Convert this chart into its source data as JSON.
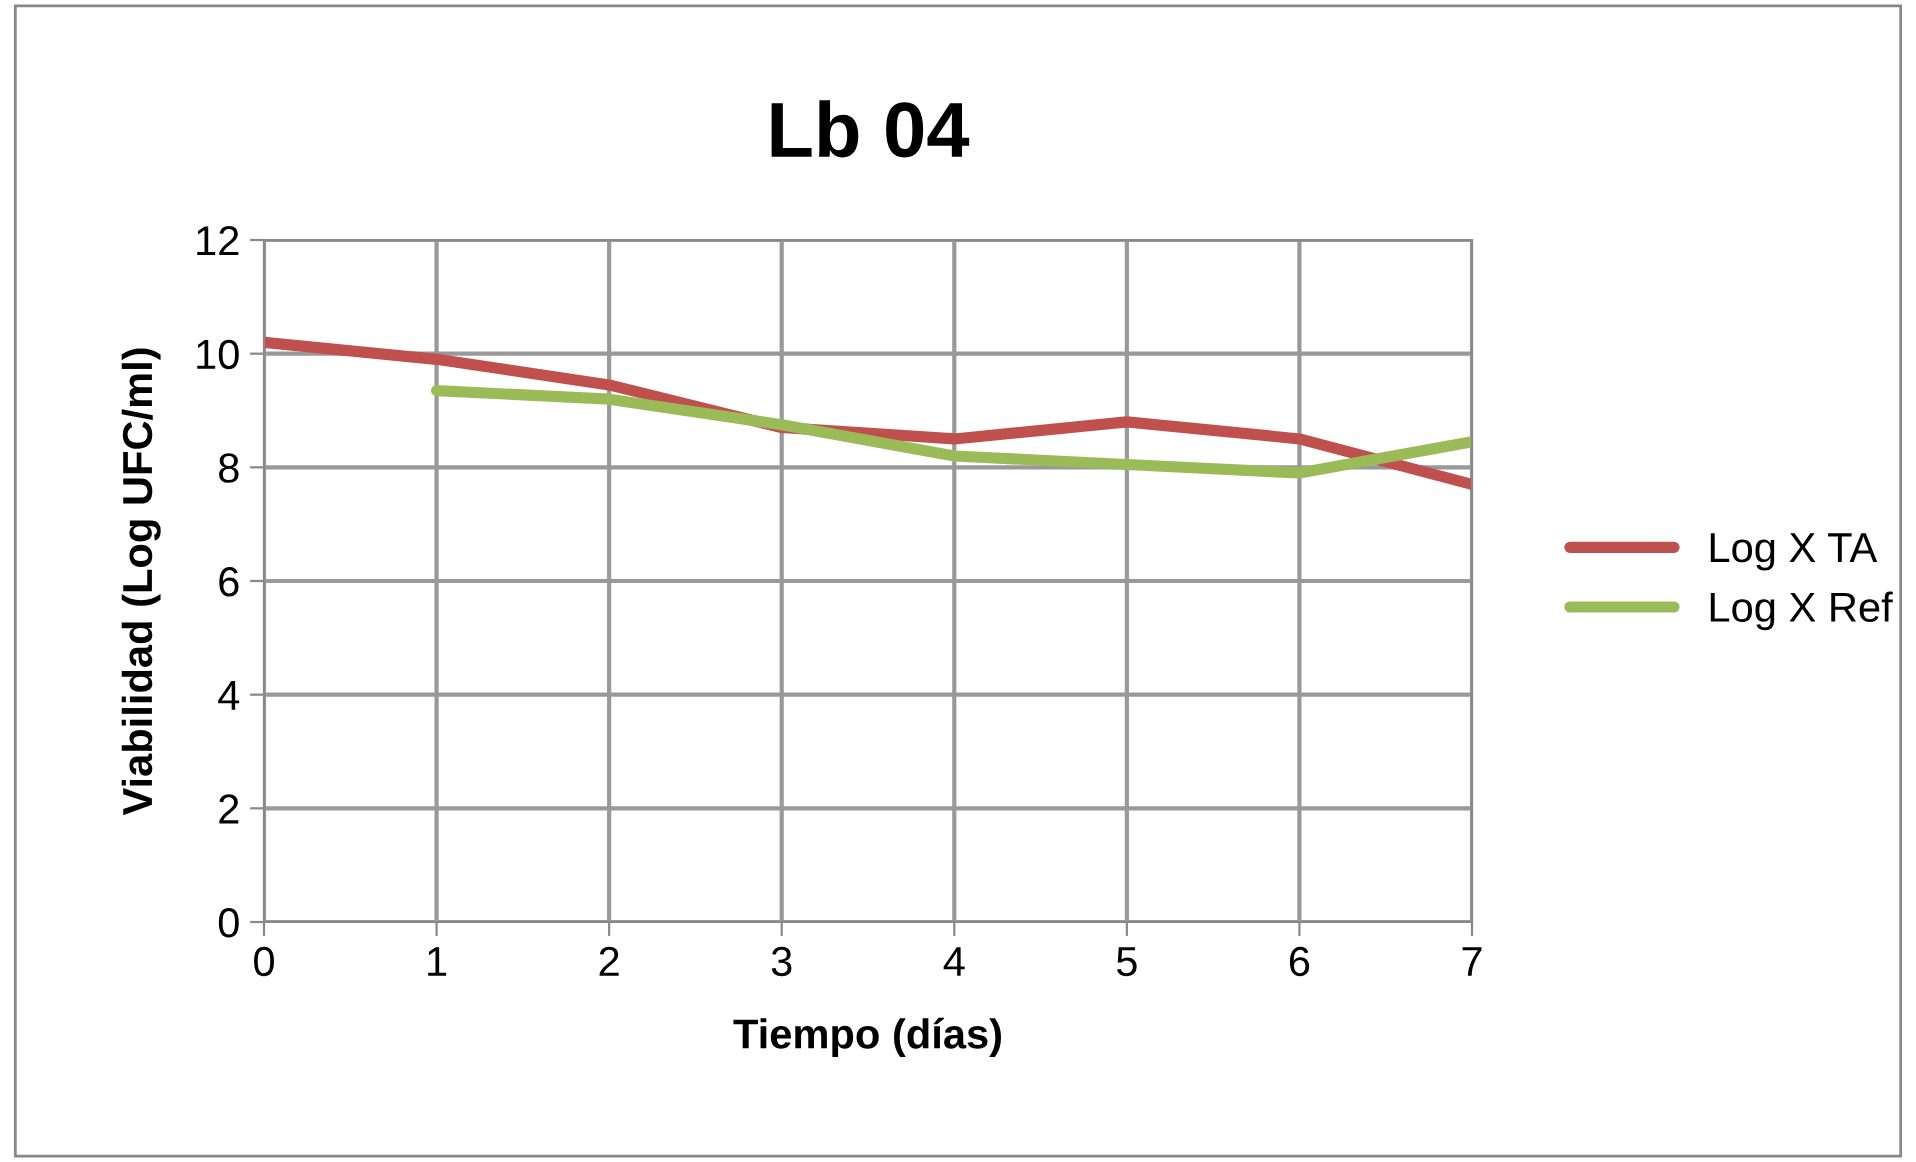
{
  "chart_data": {
    "type": "line",
    "title": "Lb 04",
    "xlabel": "Tiempo (días)",
    "ylabel": "Viabilidad (Log UFC/ml)",
    "x": [
      0,
      1,
      2,
      3,
      4,
      5,
      6,
      7
    ],
    "series": [
      {
        "name": "Log X TA",
        "color": "#c0504d",
        "values": [
          10.2,
          9.9,
          9.45,
          8.7,
          8.5,
          8.8,
          8.5,
          7.7
        ]
      },
      {
        "name": "Log X Ref",
        "color": "#9bbb59",
        "values": [
          null,
          9.35,
          9.2,
          8.75,
          8.2,
          8.05,
          7.9,
          8.45
        ]
      }
    ],
    "xlim": [
      0,
      7
    ],
    "xticks": [
      0,
      1,
      2,
      3,
      4,
      5,
      6,
      7
    ],
    "ylim": [
      0,
      12
    ],
    "yticks": [
      0,
      2,
      4,
      6,
      8,
      10,
      12
    ],
    "grid": true,
    "legend": "right",
    "marker": "none",
    "line_style": "solid"
  }
}
